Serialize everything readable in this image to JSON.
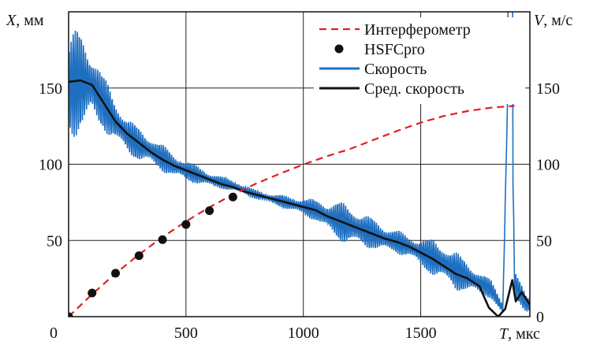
{
  "chart_data": {
    "type": "line",
    "x_axis": {
      "label_var": "T",
      "label_unit": ", мкс",
      "ticks": [
        "0",
        "500",
        "1000",
        "1500"
      ],
      "tick_values": [
        0,
        500,
        1000,
        1500
      ],
      "xlim": [
        0,
        1965
      ]
    },
    "y_left": {
      "label_var": "X",
      "label_unit": ", мм",
      "ticks": [
        "50",
        "100",
        "150"
      ],
      "tick_values": [
        50,
        100,
        150
      ],
      "ylim": [
        0,
        200
      ]
    },
    "y_right": {
      "label_var": "V",
      "label_unit": ", м/с",
      "ticks": [
        "0",
        "50",
        "100",
        "150"
      ],
      "tick_values": [
        0,
        50,
        100,
        150
      ],
      "ylim": [
        0,
        200
      ]
    },
    "grid": true,
    "legend_position": "top-right",
    "legend": [
      {
        "label": "Интерферометр",
        "color": "#e02020",
        "style": "dashed"
      },
      {
        "label": "HSFCpro",
        "color": "#111111",
        "style": "marker"
      },
      {
        "label": "Скорость",
        "color": "#1f6fc0",
        "style": "solid"
      },
      {
        "label": "Сред. скорость",
        "color": "#111111",
        "style": "solid"
      }
    ],
    "series": [
      {
        "name": "Интерферометр",
        "axis": "left",
        "x": [
          0,
          100,
          200,
          300,
          400,
          500,
          600,
          700,
          800,
          900,
          1000,
          1100,
          1200,
          1300,
          1400,
          1500,
          1600,
          1700,
          1800,
          1900
        ],
        "y": [
          0,
          14.7,
          28.3,
          40.8,
          52.2,
          62.5,
          71.8,
          80.1,
          87.4,
          93.8,
          99.8,
          105.2,
          110.1,
          116.0,
          121.9,
          127.3,
          131.7,
          134.9,
          137.1,
          138.3
        ]
      },
      {
        "name": "HSFCpro",
        "axis": "left",
        "x": [
          0,
          100,
          200,
          300,
          400,
          500,
          600,
          700
        ],
        "y": [
          0,
          15.5,
          28.5,
          40.0,
          50.5,
          60.5,
          69.5,
          78.5
        ]
      },
      {
        "name": "Скорость",
        "axis": "right",
        "x": [
          0,
          50,
          100,
          150,
          200,
          250,
          300,
          350,
          400,
          450,
          500,
          550,
          600,
          650,
          700,
          750,
          800,
          850,
          900,
          950,
          1000,
          1050,
          1100,
          1150,
          1200,
          1250,
          1300,
          1350,
          1400,
          1450,
          1500,
          1550,
          1600,
          1650,
          1700,
          1750,
          1800,
          1850,
          1880,
          1900,
          1950
        ],
        "y": [
          150,
          155,
          152,
          140,
          128,
          119,
          113,
          109,
          104,
          99,
          96,
          93,
          90,
          88,
          86,
          83,
          80,
          78,
          76,
          74,
          72,
          70,
          66,
          63,
          60,
          57,
          54,
          51,
          49,
          46,
          42,
          39,
          35,
          30,
          26,
          22,
          18,
          5,
          210,
          22,
          8
        ],
        "amp": [
          35,
          35,
          25,
          18,
          15,
          12,
          11,
          10,
          9,
          8,
          7,
          6,
          5,
          4,
          4,
          3,
          3,
          3,
          4,
          5,
          6,
          7,
          10,
          13,
          13,
          12,
          10,
          9,
          8,
          7,
          10,
          12,
          13,
          13,
          10,
          8,
          6,
          5,
          0,
          8,
          7
        ]
      },
      {
        "name": "Сред. скорость",
        "axis": "right",
        "x": [
          0,
          50,
          100,
          150,
          200,
          250,
          300,
          350,
          400,
          450,
          500,
          550,
          600,
          650,
          700,
          750,
          800,
          850,
          900,
          950,
          1000,
          1050,
          1100,
          1150,
          1200,
          1250,
          1300,
          1350,
          1400,
          1450,
          1500,
          1550,
          1600,
          1650,
          1700,
          1750,
          1790,
          1830,
          1860,
          1890,
          1905,
          1930,
          1965
        ],
        "y": [
          154,
          155,
          152,
          140,
          128,
          120,
          114,
          108,
          103,
          99,
          96,
          93,
          90,
          87,
          85,
          82,
          80,
          78,
          76,
          74,
          72,
          70,
          66,
          63,
          60,
          57,
          54,
          51,
          49,
          46,
          42,
          38,
          33,
          28,
          25,
          20,
          6,
          0,
          5,
          24,
          10,
          16,
          8
        ]
      }
    ]
  }
}
